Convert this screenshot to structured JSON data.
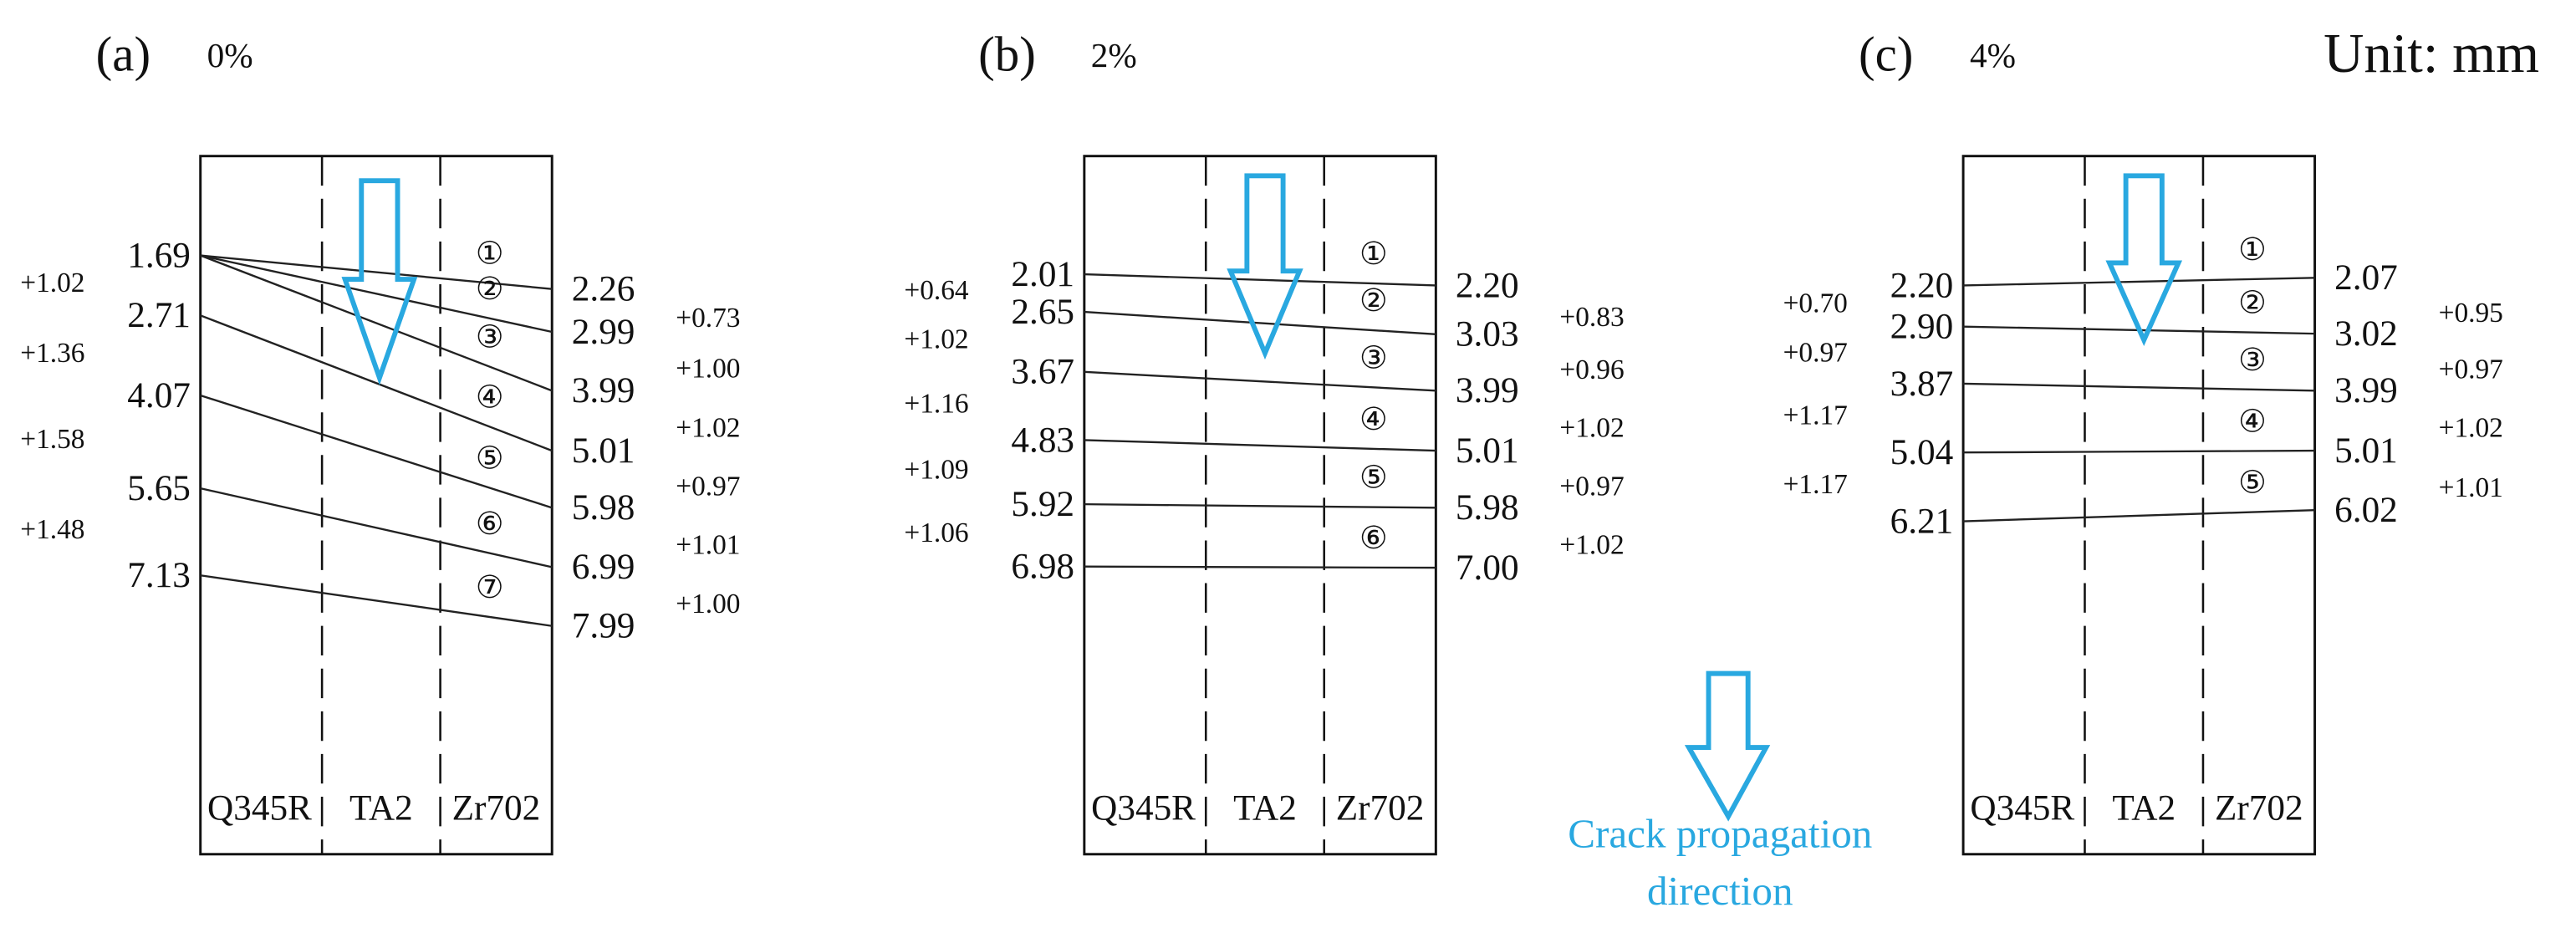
{
  "unit": "Unit: mm",
  "legend": [
    "Crack propagation",
    "direction"
  ],
  "panels": [
    {
      "label": "(a)",
      "strain": "0%",
      "columns": [
        "Q345R",
        "TA2",
        "Zr702"
      ],
      "left": [
        "1.69",
        "2.71",
        "4.07",
        "5.65",
        "7.13"
      ],
      "right": [
        "2.26",
        "2.99",
        "3.99",
        "5.01",
        "5.98",
        "6.99",
        "7.99"
      ],
      "left_increments": [
        "+1.02",
        "+1.36",
        "+1.58",
        "+1.48"
      ],
      "right_increments": [
        "+0.73",
        "+1.00",
        "+1.02",
        "+0.97",
        "+1.01",
        "+1.00"
      ],
      "markers": [
        "①",
        "②",
        "③",
        "④",
        "⑤",
        "⑥",
        "⑦"
      ]
    },
    {
      "label": "(b)",
      "strain": "2%",
      "columns": [
        "Q345R",
        "TA2",
        "Zr702"
      ],
      "left": [
        "2.01",
        "2.65",
        "3.67",
        "4.83",
        "5.92",
        "6.98"
      ],
      "right": [
        "2.20",
        "3.03",
        "3.99",
        "5.01",
        "5.98",
        "7.00"
      ],
      "left_increments": [
        "+0.64",
        "+1.02",
        "+1.16",
        "+1.09",
        "+1.06"
      ],
      "right_increments": [
        "+0.83",
        "+0.96",
        "+1.02",
        "+0.97",
        "+1.02"
      ],
      "markers": [
        "①",
        "②",
        "③",
        "④",
        "⑤",
        "⑥"
      ]
    },
    {
      "label": "(c)",
      "strain": "4%",
      "columns": [
        "Q345R",
        "TA2",
        "Zr702"
      ],
      "left": [
        "2.20",
        "2.90",
        "3.87",
        "5.04",
        "6.21"
      ],
      "right": [
        "2.07",
        "3.02",
        "3.99",
        "5.01",
        "6.02"
      ],
      "left_increments": [
        "+0.70",
        "+0.97",
        "+1.17",
        "+1.17"
      ],
      "right_increments": [
        "+0.95",
        "+0.97",
        "+1.02",
        "+1.01"
      ],
      "markers": [
        "①",
        "②",
        "③",
        "④",
        "⑤"
      ]
    }
  ]
}
